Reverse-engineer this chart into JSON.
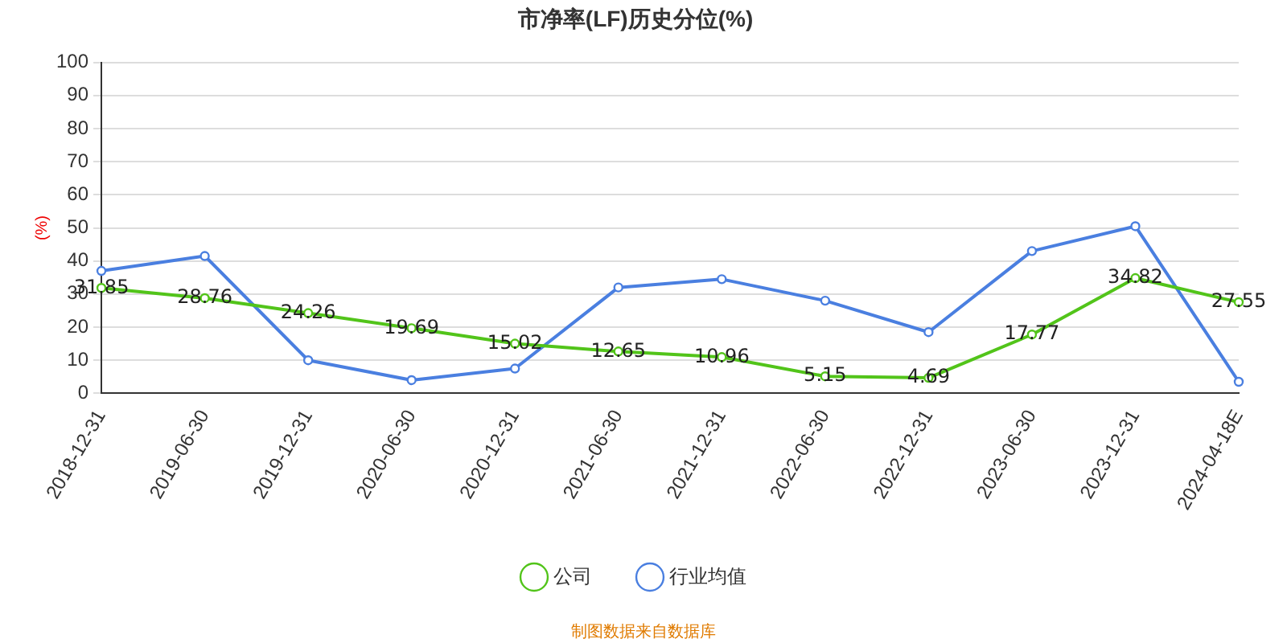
{
  "chart_data": {
    "type": "line",
    "title": "市净率(LF)历史分位(%)",
    "ylabel": "(%)",
    "categories": [
      "2018-12-31",
      "2019-06-30",
      "2019-12-31",
      "2020-06-30",
      "2020-12-31",
      "2021-06-30",
      "2021-12-31",
      "2022-06-30",
      "2022-12-31",
      "2023-06-30",
      "2023-12-31",
      "2024-04-18E"
    ],
    "series": [
      {
        "name": "公司",
        "color": "#52c41a",
        "values": [
          31.85,
          28.76,
          24.26,
          19.69,
          15.02,
          12.65,
          10.96,
          5.15,
          4.69,
          17.77,
          34.82,
          27.55
        ],
        "value_labels": [
          "31.85",
          "28.76",
          "24.26",
          "19.69",
          "15.02",
          "12.65",
          "10.96",
          "5.15",
          "4.69",
          "17.77",
          "34.82",
          "27.55"
        ]
      },
      {
        "name": "行业均值",
        "color": "#4a7fe0",
        "values": [
          37,
          41.5,
          10,
          4,
          7.5,
          32,
          34.5,
          28,
          18.5,
          43,
          50.5,
          3.5
        ]
      }
    ],
    "ylim": [
      0,
      100
    ],
    "yticks": [
      0,
      10,
      20,
      30,
      40,
      50,
      60,
      70,
      80,
      90,
      100
    ],
    "grid": "y",
    "legend": "bottom",
    "marker": "circle",
    "annotations": [
      "制图数据来自数据库"
    ]
  }
}
